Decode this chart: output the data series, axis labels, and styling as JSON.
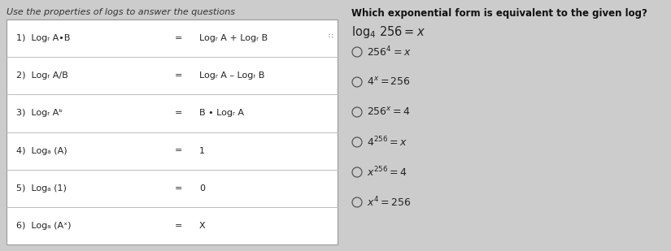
{
  "title_left": "Use the properties of logs to answer the questions",
  "title_right": "Which exponential form is equivalent to the given log?",
  "table_rows": [
    {
      "num": "1)",
      "left": "Logᵣ A•B",
      "eq": "=",
      "right": "Logᵣ A + Logᵣ B"
    },
    {
      "num": "2)",
      "left": "Logᵣ A/B",
      "eq": "=",
      "right": "Logᵣ A – Logᵣ B"
    },
    {
      "num": "3)",
      "left": "Logᵣ Aᵇ",
      "eq": "=",
      "right": "B • Logᵣ A"
    },
    {
      "num": "4)",
      "left": "Logₐ (A)",
      "eq": "=",
      "right": "1"
    },
    {
      "num": "5)",
      "left": "Logₐ (1)",
      "eq": "=",
      "right": "0"
    },
    {
      "num": "6)",
      "left": "Logₐ (Aˣ)",
      "eq": "=",
      "right": "X"
    }
  ],
  "bg_color": "#cccccc",
  "table_bg_white": "#ffffff",
  "table_border_color": "#999999",
  "row_separator_color": "#bbbbbb",
  "title_left_color": "#333333",
  "title_right_color": "#111111",
  "table_text_color": "#222222",
  "right_bg_color": "#d8d8d8",
  "choice_circle_color": "#555555",
  "choice_text_color": "#222222"
}
